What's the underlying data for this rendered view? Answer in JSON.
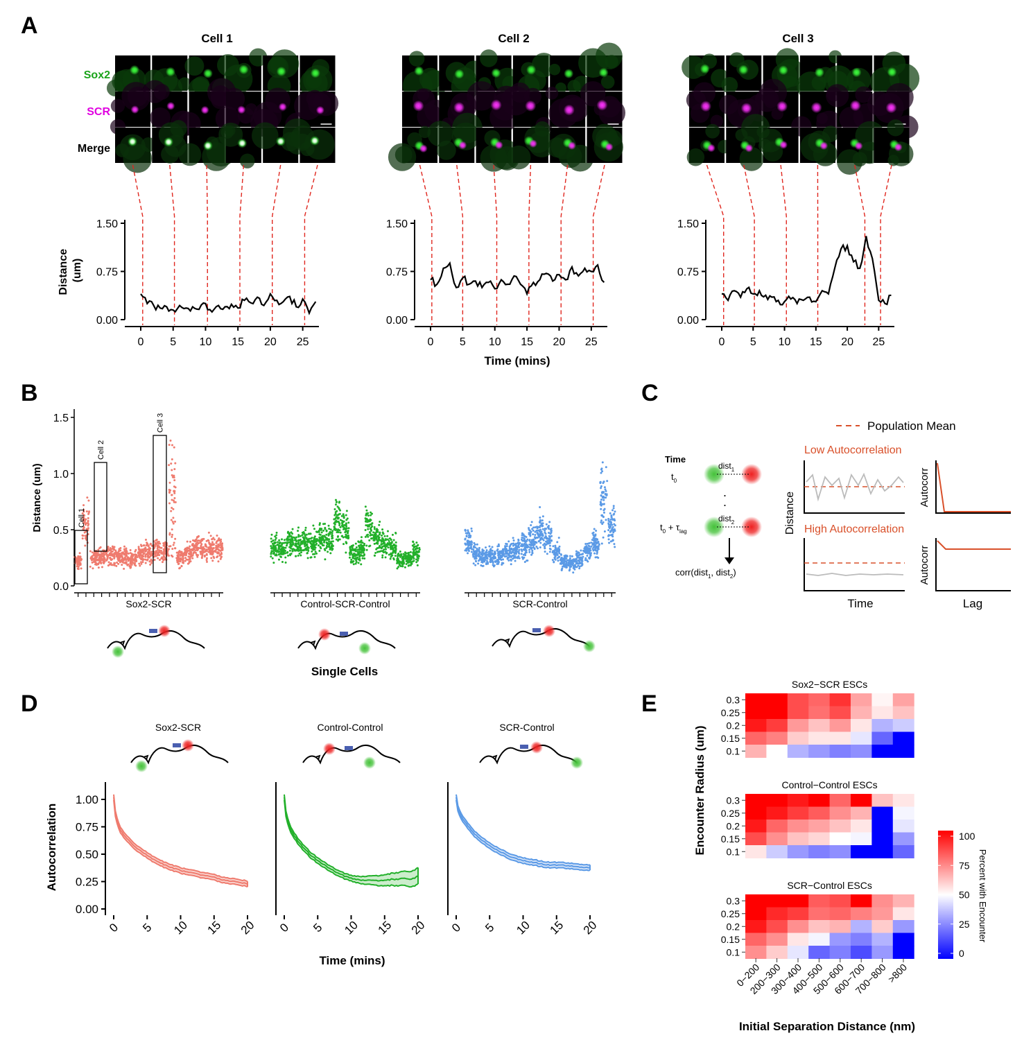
{
  "panel_letters": {
    "A": "A",
    "B": "B",
    "C": "C",
    "D": "D",
    "E": "E"
  },
  "colors": {
    "green": "#1aa31a",
    "magenta": "#e000e0",
    "red_dash": "#e0261e",
    "salmon": "#ef7b6e",
    "green_pts": "#22b02a",
    "blue_pts": "#5b9ae6",
    "orange_line": "#d9502a"
  },
  "panel_a": {
    "channels": [
      "Sox2",
      "SCR",
      "Merge"
    ],
    "cells": [
      {
        "title": "Cell 1",
        "marker_times": [
          0.3,
          5.2,
          10.3,
          15.3,
          20.3,
          25.3
        ]
      },
      {
        "title": "Cell 2",
        "marker_times": [
          0.2,
          5.0,
          10.3,
          15.3,
          20.3,
          25.3
        ]
      },
      {
        "title": "Cell 3",
        "marker_times": [
          0.3,
          5.2,
          10.3,
          15.3,
          22.8,
          25.3
        ]
      }
    ],
    "ylabel": "Distance (um)",
    "xlabel": "Time (mins)",
    "yticks": [
      "0.00",
      "0.75",
      "1.50"
    ],
    "xticks": [
      "0",
      "5",
      "10",
      "15",
      "20",
      "25"
    ]
  },
  "panel_b": {
    "ylabel": "Distance (um)",
    "yticks": [
      "0.0",
      "0.5",
      "1.0",
      "1.5"
    ],
    "groups": [
      "Sox2-SCR",
      "Control-SCR-Control",
      "SCR-Control"
    ],
    "boxes": [
      "Cell 1",
      "Cell 2",
      "Cell 3"
    ],
    "footer": "Single Cells"
  },
  "panel_c": {
    "time_label": "Time",
    "t0": "t",
    "t0_sub": "0",
    "tlag": "t",
    "tlag_sub": "0",
    "tlag_plus": " + τ",
    "tlag_plus_sub": "lag",
    "dist1": "dist",
    "dist1_sub": "1",
    "dist2": "dist",
    "dist2_sub": "2",
    "corr_a": "corr(dist",
    "corr_sub1": "1",
    "corr_b": ", dist",
    "corr_sub2": "2",
    "corr_c": ")",
    "legend": "Population Mean",
    "low": "Low Autocorrelation",
    "high": "High Autocorrelation",
    "distance": "Distance",
    "autocorr": "Autocorr",
    "xlabel_time": "Time",
    "xlabel_lag": "Lag"
  },
  "panel_d": {
    "titles": [
      "Sox2-SCR",
      "Control-Control",
      "SCR-Control"
    ],
    "ylabel": "Autocorrelation",
    "xlabel": "Time (mins)",
    "yticks": [
      "0.00",
      "0.25",
      "0.50",
      "0.75",
      "1.00"
    ],
    "xticks": [
      "0",
      "5",
      "10",
      "15",
      "20"
    ]
  },
  "panel_e": {
    "titles": [
      "Sox2−SCR ESCs",
      "Control−Control ESCs",
      "SCR−Control ESCs"
    ],
    "ylabel": "Encounter Radius (um)",
    "xlabel": "Initial Separation Distance (nm)",
    "rows": [
      "0.3",
      "0.25",
      "0.2",
      "0.15",
      "0.1"
    ],
    "cols": [
      "0−200",
      "200−300",
      "300−400",
      "400−500",
      "500−600",
      "600−700",
      "700−800",
      ">800"
    ],
    "legend_title": "Percent with Encounter",
    "legend_ticks": [
      "100",
      "75",
      "50",
      "25",
      "0"
    ],
    "heatmaps": [
      [
        [
          100,
          100,
          85,
          80,
          90,
          68,
          52,
          68
        ],
        [
          100,
          100,
          85,
          78,
          85,
          65,
          55,
          62
        ],
        [
          95,
          88,
          70,
          62,
          70,
          55,
          35,
          40
        ],
        [
          80,
          75,
          60,
          55,
          55,
          45,
          20,
          0
        ],
        [
          65,
          50,
          35,
          30,
          25,
          28,
          0,
          0
        ]
      ],
      [
        [
          100,
          100,
          95,
          100,
          80,
          100,
          62,
          55
        ],
        [
          100,
          95,
          88,
          82,
          72,
          65,
          0,
          48
        ],
        [
          95,
          80,
          72,
          68,
          62,
          55,
          0,
          45
        ],
        [
          85,
          72,
          62,
          58,
          50,
          48,
          0,
          30
        ],
        [
          55,
          40,
          30,
          25,
          28,
          0,
          0,
          20
        ]
      ],
      [
        [
          100,
          100,
          100,
          82,
          85,
          100,
          72,
          65
        ],
        [
          100,
          92,
          88,
          78,
          80,
          75,
          70,
          55
        ],
        [
          95,
          85,
          72,
          62,
          65,
          35,
          60,
          30
        ],
        [
          80,
          72,
          55,
          48,
          30,
          25,
          35,
          0
        ],
        [
          72,
          60,
          45,
          20,
          25,
          15,
          30,
          0
        ]
      ]
    ]
  },
  "chart_data": [
    {
      "type": "line",
      "title": "Cell 1",
      "xlabel": "Time (mins)",
      "ylabel": "Distance (um)",
      "ylim": [
        0,
        1.5
      ],
      "x": [
        0,
        1,
        2,
        3,
        4,
        5,
        6,
        7,
        8,
        9,
        10,
        11,
        12,
        13,
        14,
        15,
        16,
        17,
        18,
        19,
        20,
        21,
        22,
        23,
        24,
        25,
        26,
        27
      ],
      "y": [
        0.4,
        0.25,
        0.22,
        0.18,
        0.2,
        0.15,
        0.22,
        0.18,
        0.2,
        0.16,
        0.25,
        0.12,
        0.22,
        0.2,
        0.24,
        0.18,
        0.3,
        0.26,
        0.35,
        0.22,
        0.4,
        0.3,
        0.28,
        0.36,
        0.2,
        0.32,
        0.1,
        0.28
      ]
    },
    {
      "type": "line",
      "title": "Cell 2",
      "xlabel": "Time (mins)",
      "ylabel": "Distance (um)",
      "ylim": [
        0,
        1.5
      ],
      "x": [
        0,
        1,
        2,
        3,
        4,
        5,
        6,
        7,
        8,
        9,
        10,
        11,
        12,
        13,
        14,
        15,
        16,
        17,
        18,
        19,
        20,
        21,
        22,
        23,
        24,
        25,
        26,
        27
      ],
      "y": [
        0.62,
        0.55,
        0.8,
        0.88,
        0.5,
        0.65,
        0.55,
        0.6,
        0.5,
        0.58,
        0.48,
        0.62,
        0.55,
        0.68,
        0.55,
        0.4,
        0.58,
        0.62,
        0.72,
        0.6,
        0.7,
        0.62,
        0.82,
        0.68,
        0.8,
        0.75,
        0.85,
        0.58
      ]
    },
    {
      "type": "line",
      "title": "Cell 3",
      "xlabel": "Time (mins)",
      "ylabel": "Distance (um)",
      "ylim": [
        0,
        1.5
      ],
      "x": [
        0,
        1,
        2,
        3,
        4,
        5,
        6,
        7,
        8,
        9,
        10,
        11,
        12,
        13,
        14,
        15,
        16,
        17,
        18,
        19,
        20,
        21,
        22,
        23,
        24,
        25,
        26,
        27
      ],
      "y": [
        0.4,
        0.3,
        0.45,
        0.35,
        0.48,
        0.4,
        0.45,
        0.38,
        0.35,
        0.3,
        0.28,
        0.32,
        0.25,
        0.3,
        0.35,
        0.28,
        0.45,
        0.4,
        0.8,
        1.1,
        1.15,
        0.9,
        0.8,
        1.3,
        0.95,
        0.3,
        0.25,
        0.38
      ]
    },
    {
      "type": "line",
      "title": "Sox2-SCR",
      "xlabel": "Time (mins)",
      "ylabel": "Autocorrelation",
      "ylim": [
        0,
        1.1
      ],
      "x": [
        0,
        1,
        2,
        3,
        4,
        5,
        6,
        7,
        8,
        9,
        10,
        11,
        12,
        13,
        14,
        15,
        16,
        17,
        18,
        19,
        20
      ],
      "y": [
        1.02,
        0.72,
        0.64,
        0.58,
        0.53,
        0.49,
        0.45,
        0.42,
        0.39,
        0.37,
        0.35,
        0.34,
        0.33,
        0.31,
        0.3,
        0.29,
        0.27,
        0.26,
        0.25,
        0.24,
        0.23
      ]
    },
    {
      "type": "line",
      "title": "Control-Control",
      "xlabel": "Time (mins)",
      "ylabel": "Autocorrelation",
      "ylim": [
        0,
        1.1
      ],
      "x": [
        0,
        1,
        2,
        3,
        4,
        5,
        6,
        7,
        8,
        9,
        10,
        11,
        12,
        13,
        14,
        15,
        16,
        17,
        18,
        19,
        20
      ],
      "y": [
        1.02,
        0.72,
        0.62,
        0.55,
        0.49,
        0.44,
        0.4,
        0.36,
        0.33,
        0.3,
        0.28,
        0.27,
        0.26,
        0.26,
        0.26,
        0.26,
        0.27,
        0.27,
        0.28,
        0.27,
        0.3
      ]
    },
    {
      "type": "line",
      "title": "SCR-Control",
      "xlabel": "Time (mins)",
      "ylabel": "Autocorrelation",
      "ylim": [
        0,
        1.1
      ],
      "x": [
        0,
        1,
        2,
        3,
        4,
        5,
        6,
        7,
        8,
        9,
        10,
        11,
        12,
        13,
        14,
        15,
        16,
        17,
        18,
        19,
        20
      ],
      "y": [
        1.02,
        0.82,
        0.74,
        0.67,
        0.62,
        0.58,
        0.54,
        0.51,
        0.48,
        0.46,
        0.44,
        0.43,
        0.42,
        0.41,
        0.4,
        0.4,
        0.4,
        0.39,
        0.39,
        0.38,
        0.38
      ]
    }
  ]
}
